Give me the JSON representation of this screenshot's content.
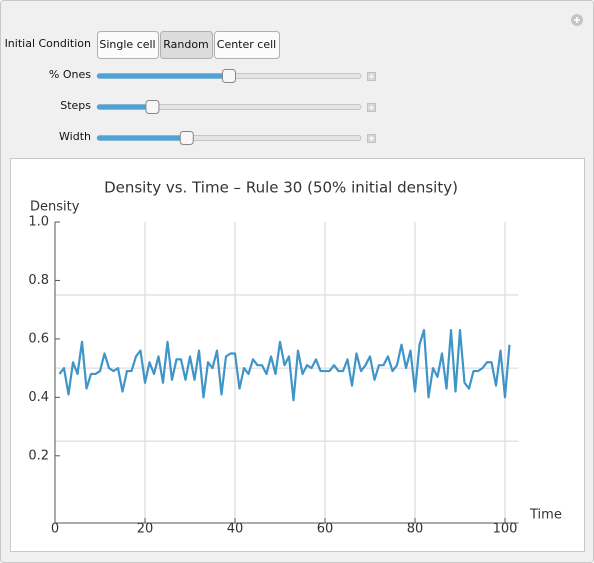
{
  "controls": {
    "initial_condition": {
      "label": "Initial Condition",
      "options": [
        "Single cell",
        "Random",
        "Center cell"
      ],
      "selected": 1
    },
    "sliders": [
      {
        "label": "% Ones",
        "value": 0.5
      },
      {
        "label": "Steps",
        "value": 0.21
      },
      {
        "label": "Width",
        "value": 0.34
      }
    ]
  },
  "chart_data": {
    "type": "line",
    "title": "Density vs. Time – Rule 30 (50% initial density)",
    "y_label": "Density",
    "x_label": "Time",
    "color": "#3f94c8",
    "x": [
      1,
      2,
      3,
      4,
      5,
      6,
      7,
      8,
      9,
      10,
      11,
      12,
      13,
      14,
      15,
      16,
      17,
      18,
      19,
      20,
      21,
      22,
      23,
      24,
      25,
      26,
      27,
      28,
      29,
      30,
      31,
      32,
      33,
      34,
      35,
      36,
      37,
      38,
      39,
      40,
      41,
      42,
      43,
      44,
      45,
      46,
      47,
      48,
      49,
      50,
      51,
      52,
      53,
      54,
      55,
      56,
      57,
      58,
      59,
      60,
      61,
      62,
      63,
      64,
      65,
      66,
      67,
      68,
      69,
      70,
      71,
      72,
      73,
      74,
      75,
      76,
      77,
      78,
      79,
      80,
      81,
      82,
      83,
      84,
      85,
      86,
      87,
      88,
      89,
      90,
      91,
      92,
      93,
      94,
      95,
      96,
      97,
      98,
      99,
      100,
      101
    ],
    "values": [
      0.48,
      0.5,
      0.41,
      0.52,
      0.48,
      0.59,
      0.43,
      0.48,
      0.48,
      0.49,
      0.55,
      0.5,
      0.49,
      0.5,
      0.42,
      0.49,
      0.49,
      0.54,
      0.56,
      0.45,
      0.52,
      0.48,
      0.54,
      0.45,
      0.59,
      0.46,
      0.53,
      0.53,
      0.46,
      0.54,
      0.46,
      0.56,
      0.4,
      0.52,
      0.5,
      0.56,
      0.41,
      0.54,
      0.55,
      0.55,
      0.43,
      0.5,
      0.48,
      0.53,
      0.51,
      0.51,
      0.48,
      0.54,
      0.48,
      0.59,
      0.51,
      0.54,
      0.39,
      0.56,
      0.48,
      0.51,
      0.5,
      0.53,
      0.49,
      0.49,
      0.49,
      0.51,
      0.49,
      0.49,
      0.53,
      0.44,
      0.55,
      0.49,
      0.51,
      0.54,
      0.46,
      0.51,
      0.51,
      0.54,
      0.49,
      0.51,
      0.58,
      0.5,
      0.56,
      0.42,
      0.58,
      0.63,
      0.4,
      0.5,
      0.47,
      0.55,
      0.43,
      0.63,
      0.42,
      0.63,
      0.45,
      0.43,
      0.49,
      0.49,
      0.5,
      0.52,
      0.52,
      0.44,
      0.56,
      0.4,
      0.58
    ],
    "xlim": [
      0,
      103
    ],
    "ylim": [
      -0.03,
      1.0
    ],
    "xticks": [
      0,
      20,
      40,
      60,
      80,
      100
    ],
    "yticks": [
      0.2,
      0.4,
      0.6,
      0.8,
      {
        "value": 1.0,
        "label": "1.0"
      }
    ],
    "xgrid": [
      20,
      40,
      60,
      80,
      100
    ],
    "ygrid": [
      0.25,
      0.5,
      0.75
    ]
  }
}
